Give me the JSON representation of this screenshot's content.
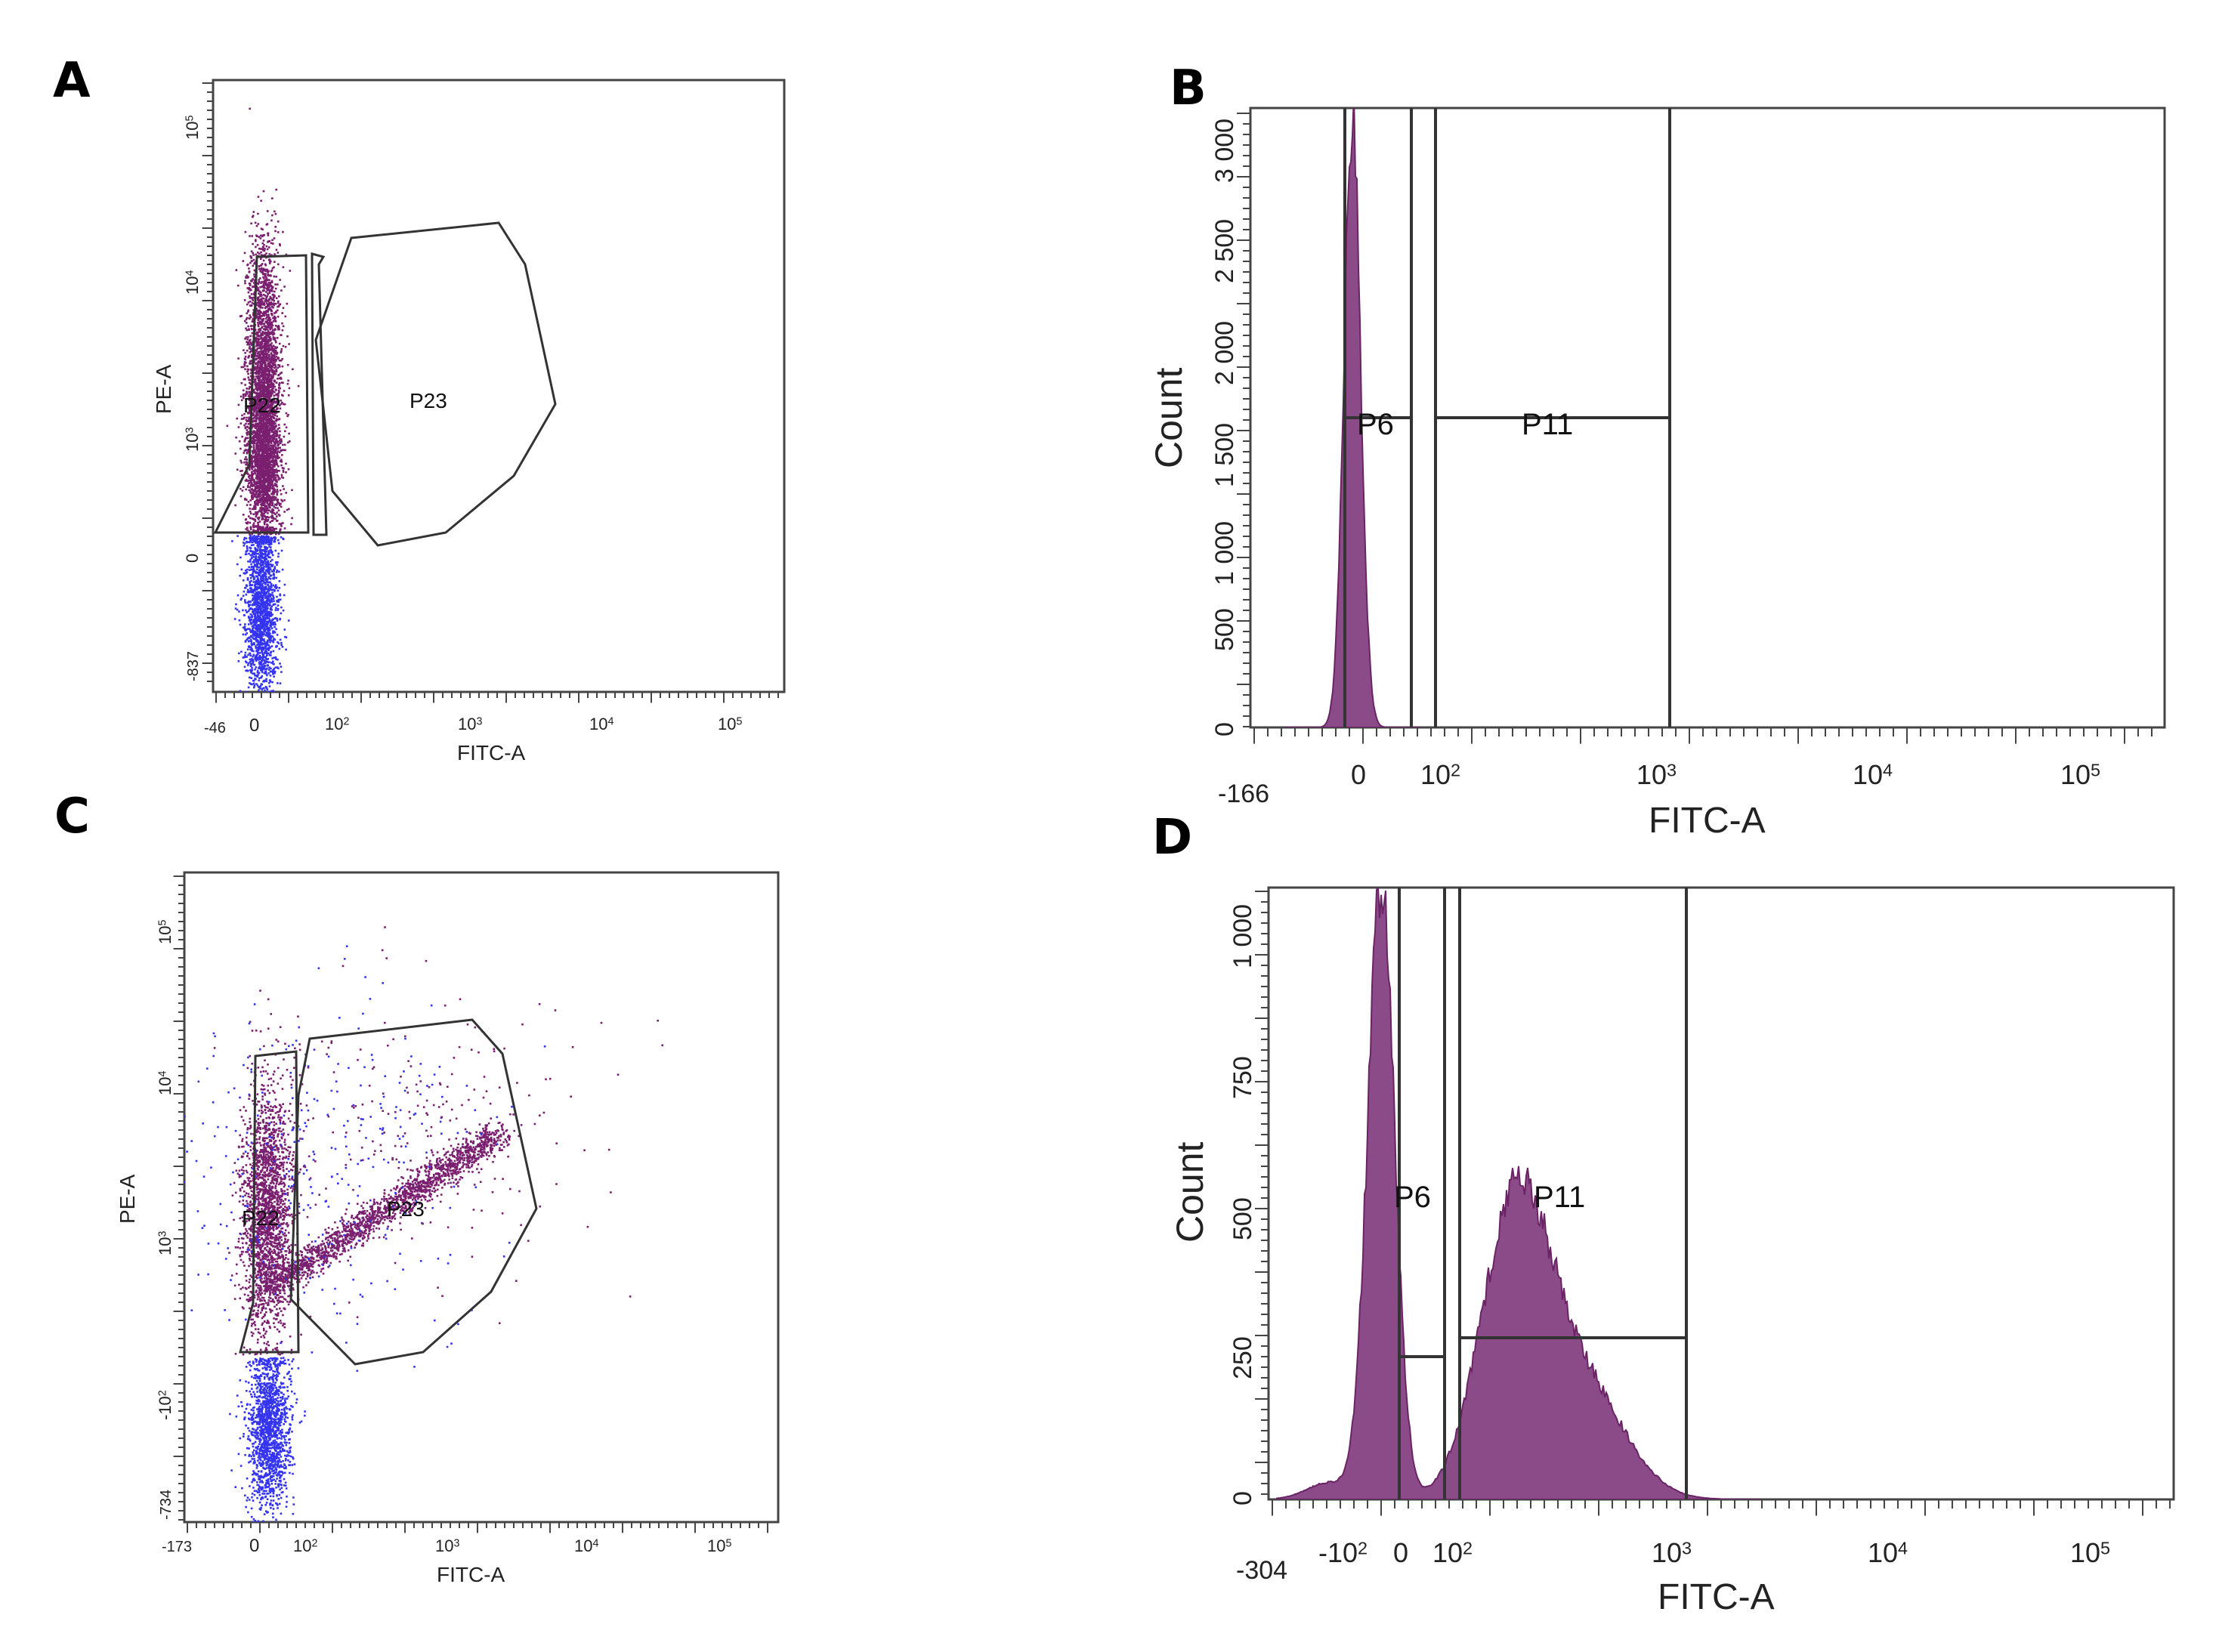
{
  "panels": [
    {
      "id": "A",
      "label": "A"
    },
    {
      "id": "B",
      "label": "B"
    },
    {
      "id": "C",
      "label": "C"
    },
    {
      "id": "D",
      "label": "D"
    }
  ],
  "colors": {
    "gated": "#7a1f6f",
    "ungated": "#3434f0",
    "hist_fill": "#8b4b89",
    "frame": "#333333"
  },
  "chart_data": [
    {
      "panel": "A",
      "type": "scatter",
      "xlabel": "FITC-A",
      "ylabel": "PE-A",
      "x_scale": "biexponential",
      "y_scale": "biexponential",
      "x_ticks": [
        "-46",
        "0",
        "10^2",
        "10^3",
        "10^4",
        "10^5"
      ],
      "y_ticks": [
        "-837",
        "0",
        "10^3",
        "10^4",
        "10^5"
      ],
      "gates": [
        "P22",
        "P23"
      ],
      "series": [
        {
          "name": "P22",
          "color": "#7a1f6f"
        },
        {
          "name": "ungated",
          "color": "#3434f0"
        }
      ]
    },
    {
      "panel": "B",
      "type": "area",
      "xlabel": "FITC-A",
      "ylabel": "Count",
      "x_scale": "biexponential",
      "x_ticks": [
        "-166",
        "0",
        "10^2",
        "10^3",
        "10^4",
        "10^5"
      ],
      "y_ticks": [
        "0",
        "500",
        "1 000",
        "1 500",
        "2 000",
        "2 500",
        "3 000"
      ],
      "ylim": [
        0,
        3250
      ],
      "gates": [
        "P6",
        "P11"
      ],
      "peak": {
        "x": "0",
        "count": 3200
      }
    },
    {
      "panel": "C",
      "type": "scatter",
      "xlabel": "FITC-A",
      "ylabel": "PE-A",
      "x_scale": "biexponential",
      "y_scale": "biexponential",
      "x_ticks": [
        "-173",
        "0",
        "10^2",
        "10^3",
        "10^4",
        "10^5"
      ],
      "y_ticks": [
        "-734",
        "-10^2",
        "10^3",
        "10^4",
        "10^5"
      ],
      "gates": [
        "P22",
        "P23"
      ],
      "series": [
        {
          "name": "P22",
          "color": "#7a1f6f"
        },
        {
          "name": "P23",
          "color": "#7a1f6f"
        },
        {
          "name": "ungated",
          "color": "#3434f0"
        }
      ]
    },
    {
      "panel": "D",
      "type": "area",
      "xlabel": "FITC-A",
      "ylabel": "Count",
      "x_scale": "biexponential",
      "x_ticks": [
        "-304",
        "-10^2",
        "0",
        "10^2",
        "10^3",
        "10^4",
        "10^5"
      ],
      "y_ticks": [
        "0",
        "250",
        "500",
        "750",
        "1 000"
      ],
      "ylim": [
        0,
        1100
      ],
      "gates": [
        "P6",
        "P11"
      ],
      "peaks": [
        {
          "x": "0",
          "count": 1090
        },
        {
          "x": "~300",
          "count": 520
        }
      ]
    }
  ]
}
